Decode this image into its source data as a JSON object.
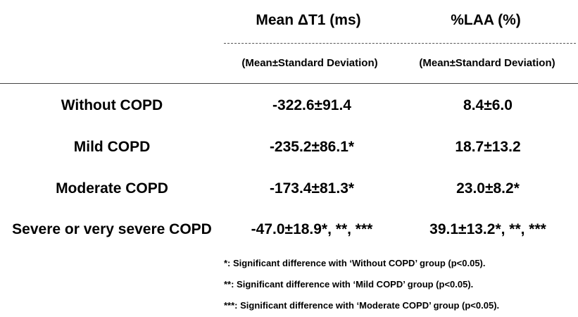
{
  "table": {
    "headers": [
      "Mean ΔT1 (ms)",
      "%LAA (%)"
    ],
    "subheaders": [
      "(Mean±Standard Deviation)",
      "(Mean±Standard Deviation)"
    ],
    "rows": [
      {
        "label": "Without COPD",
        "cells": [
          "-322.6±91.4",
          "8.4±6.0"
        ]
      },
      {
        "label": "Mild COPD",
        "cells": [
          "-235.2±86.1*",
          "18.7±13.2"
        ]
      },
      {
        "label": "Moderate COPD",
        "cells": [
          "-173.4±81.3*",
          "23.0±8.2*"
        ]
      },
      {
        "label": "Severe or very severe COPD",
        "cells": [
          "-47.0±18.9*, **, ***",
          "39.1±13.2*, **, ***"
        ]
      }
    ]
  },
  "notes": [
    "*: Significant difference with ‘Without COPD’ group (p<0.05).",
    "**: Significant difference with ‘Mild COPD’ group (p<0.05).",
    "***: Significant difference with ‘Moderate COPD’ group (p<0.05)."
  ]
}
